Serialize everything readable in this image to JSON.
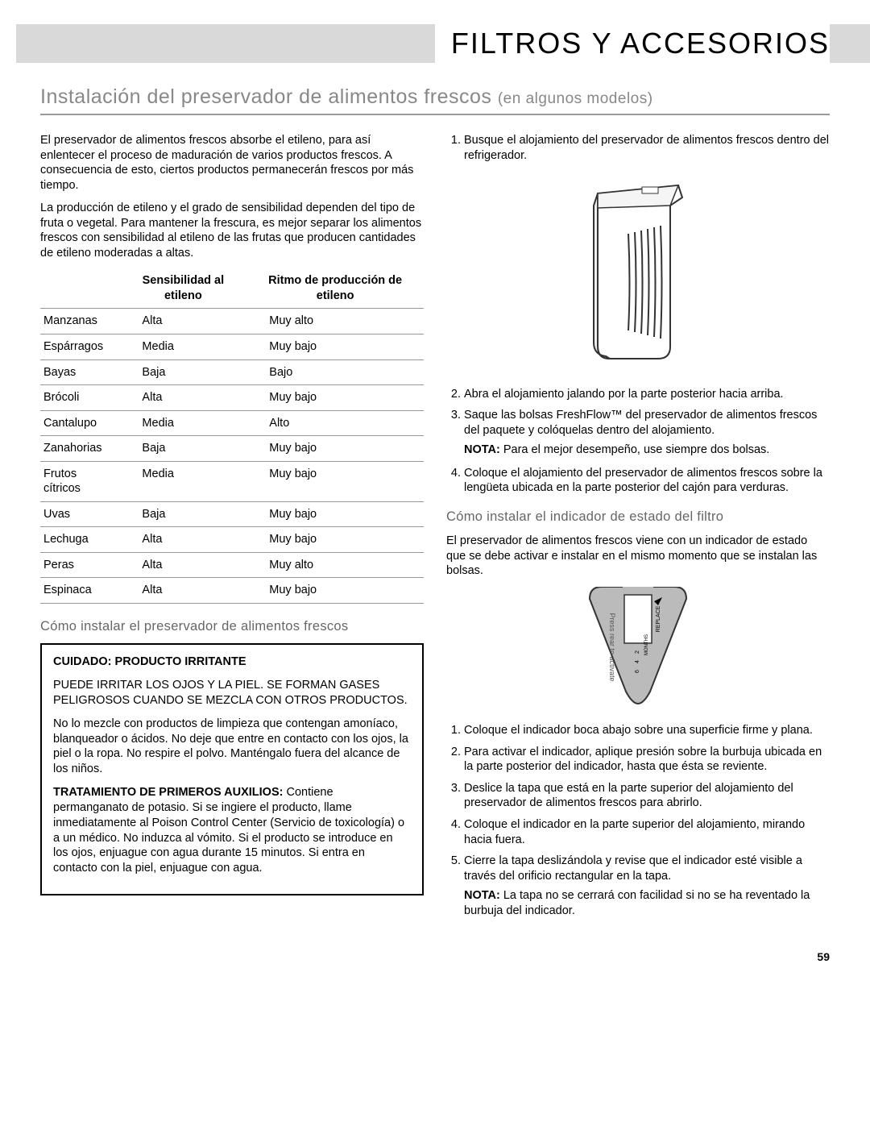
{
  "header": {
    "title": "FILTROS Y ACCESORIOS"
  },
  "section": {
    "title_main": "Instalación del preservador de alimentos frescos",
    "title_sub": "(en algunos modelos)"
  },
  "intro": {
    "p1": "El preservador de alimentos frescos absorbe el etileno, para así enlentecer el proceso de maduración de varios productos frescos. A consecuencia de esto, ciertos productos permanecerán frescos por más tiempo.",
    "p2": "La producción de etileno y el grado de sensibilidad dependen del tipo de fruta o vegetal. Para mantener la frescura, es mejor separar los alimentos frescos con sensibilidad al etileno de las frutas que producen cantidades de etileno moderadas a altas."
  },
  "table": {
    "h1": "",
    "h2": "Sensibilidad al etileno",
    "h3": "Ritmo de producción de etileno",
    "rows": [
      [
        "Manzanas",
        "Alta",
        "Muy alto"
      ],
      [
        "Espárragos",
        "Media",
        "Muy bajo"
      ],
      [
        "Bayas",
        "Baja",
        "Bajo"
      ],
      [
        "Brócoli",
        "Alta",
        "Muy bajo"
      ],
      [
        "Cantalupo",
        "Media",
        "Alto"
      ],
      [
        "Zanahorias",
        "Baja",
        "Muy bajo"
      ],
      [
        "Frutos cítricos",
        "Media",
        "Muy bajo"
      ],
      [
        "Uvas",
        "Baja",
        "Muy bajo"
      ],
      [
        "Lechuga",
        "Alta",
        "Muy bajo"
      ],
      [
        "Peras",
        "Alta",
        "Muy alto"
      ],
      [
        "Espinaca",
        "Alta",
        "Muy bajo"
      ]
    ]
  },
  "subh1": "Cómo instalar el preservador de alimentos frescos",
  "warn": {
    "title": "CUIDADO: PRODUCTO IRRITANTE",
    "p1": "PUEDE IRRITAR LOS OJOS Y LA PIEL. SE FORMAN GASES PELIGROSOS CUANDO SE MEZCLA CON OTROS PRODUCTOS.",
    "p2": "No lo mezcle con productos de limpieza que contengan amoníaco, blanqueador o ácidos. No deje que entre en contacto con los ojos, la piel o la ropa. No respire el polvo. Manténgalo fuera del alcance de los niños.",
    "p3a": "TRATAMIENTO DE PRIMEROS AUXILIOS:",
    "p3b": " Contiene permanganato de potasio. Si se ingiere el producto, llame inmediatamente al Poison Control Center (Servicio de toxicología) o a un médico. No induzca al vómito. Si el producto se introduce en los ojos, enjuague con agua durante 15 minutos. Si entra en contacto con la piel, enjuague con agua."
  },
  "right": {
    "li1": "Busque el alojamiento del preservador de alimentos frescos dentro del refrigerador.",
    "li2": "Abra el alojamiento jalando por la parte posterior hacia arriba.",
    "li3": "Saque las bolsas FreshFlow™ del preservador de alimentos frescos del paquete y colóquelas dentro del alojamiento.",
    "nota1_label": "NOTA:",
    "nota1_text": " Para el mejor desempeño, use siempre dos bolsas.",
    "li4": "Coloque el alojamiento del preservador de alimentos frescos sobre la lengüeta ubicada en la parte posterior del cajón para verduras.",
    "subh2": "Cómo instalar el indicador de estado del filtro",
    "p1": "El preservador de alimentos frescos viene con un indicador de estado que se debe activar e instalar en el mismo momento que se instalan las bolsas.",
    "ol2_1": "Coloque el indicador boca abajo sobre una superficie firme y plana.",
    "ol2_2": "Para activar el indicador, aplique presión sobre la burbuja ubicada en la parte posterior del indicador, hasta que ésta se reviente.",
    "ol2_3": "Deslice la tapa que está en la parte superior del alojamiento del preservador de alimentos frescos para abrirlo.",
    "ol2_4": "Coloque el indicador en la parte superior del alojamiento, mirando hacia fuera.",
    "ol2_5": "Cierre la tapa deslizándola y revise que el indicador esté visible a través del orificio rectangular en la tapa.",
    "nota2_label": "NOTA:",
    "nota2_text": " La tapa no se cerrará con facilidad si no se ha reventado la burbuja del indicador.",
    "indicator_labels": {
      "replace": "REPLACE",
      "months": "MONTHS",
      "n2": "2",
      "n4": "4",
      "n6": "6",
      "press": "Press rear to activate"
    }
  },
  "page_num": "59",
  "colors": {
    "header_bg": "#d9d9d9",
    "rule": "#999999",
    "subtext": "#888888"
  }
}
